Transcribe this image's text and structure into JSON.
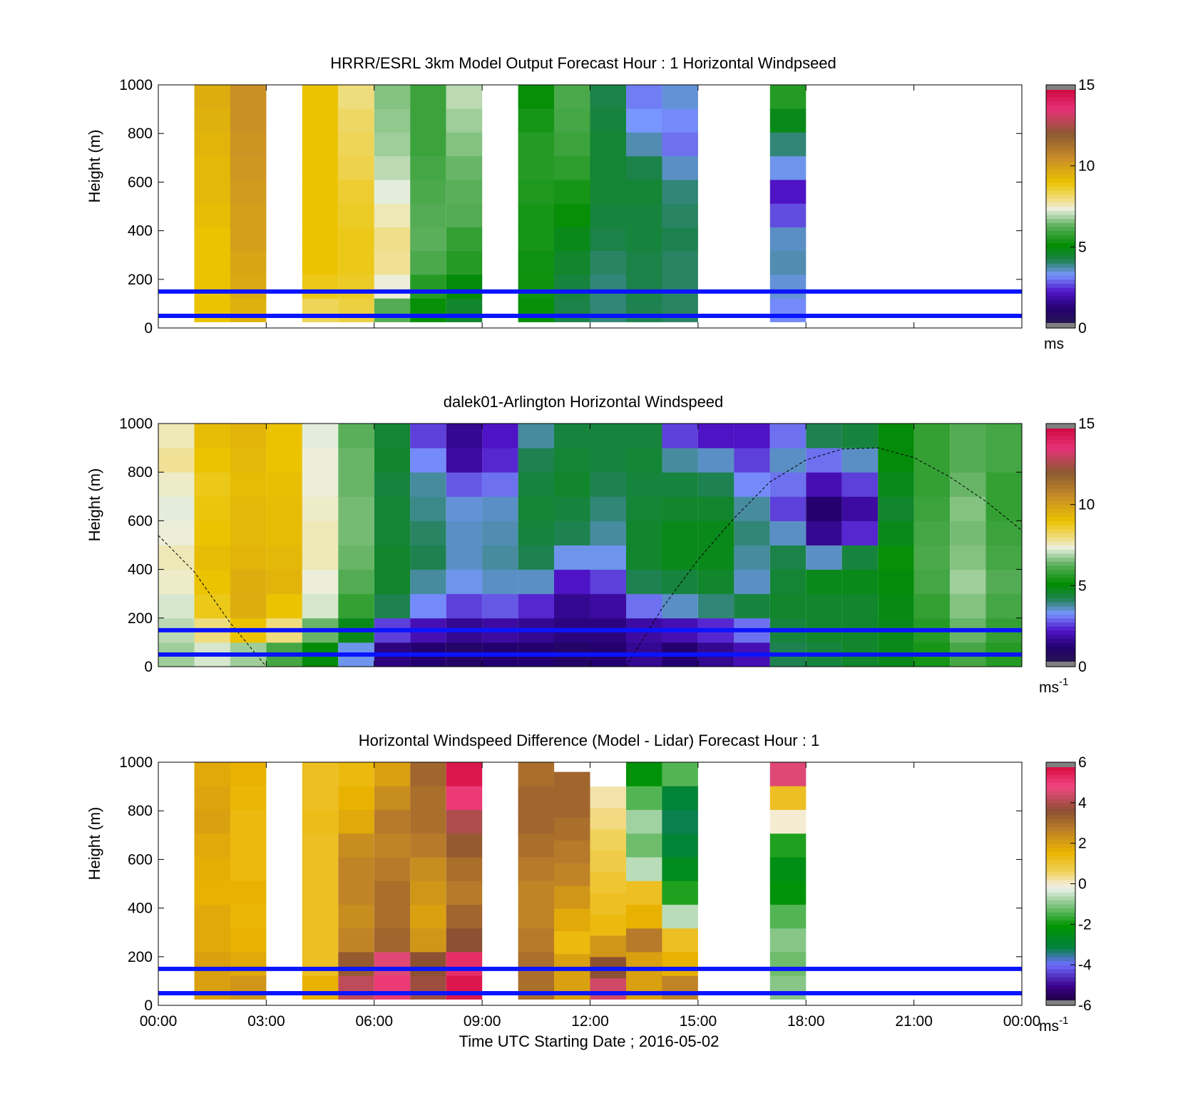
{
  "chart_data": [
    {
      "type": "heatmap",
      "title": "HRRR/ESRL 3km Model Output   Forecast Hour : 1 Horizontal Windpseed",
      "ylabel": "Height (m)",
      "ylim": [
        0,
        1000
      ],
      "yticks": [
        "1000",
        "800",
        "600",
        "400",
        "200",
        "0"
      ],
      "xlim_hours": [
        0,
        24
      ],
      "colorbar": {
        "ticks": [
          "15",
          "10",
          "5",
          "0"
        ],
        "range": [
          0,
          15
        ],
        "unit": "ms",
        "unit_sup": ""
      },
      "reference_heights": [
        50,
        150
      ],
      "columns": [
        {
          "t": 1,
          "values": [
            9,
            9,
            9,
            9,
            9.2,
            9.3,
            9.3,
            9.4,
            9.5,
            9.6
          ]
        },
        {
          "t": 2,
          "values": [
            9.5,
            9.7,
            9.8,
            10,
            10,
            10.1,
            10.2,
            10.3,
            10.4,
            10.4
          ]
        },
        {
          "t": 4,
          "values": [
            8.3,
            8.8,
            9,
            9,
            9,
            9,
            9,
            9,
            9,
            9
          ]
        },
        {
          "t": 5,
          "values": [
            8.5,
            8.7,
            8.8,
            8.8,
            8.7,
            8.6,
            8.4,
            8.3,
            8.2,
            8.0
          ]
        },
        {
          "t": 6,
          "values": [
            6.2,
            7.4,
            7.8,
            7.9,
            7.6,
            7.3,
            7.0,
            6.8,
            6.7,
            6.6
          ]
        },
        {
          "t": 7,
          "values": [
            5.2,
            5.6,
            6.1,
            6.3,
            6.2,
            6.1,
            6.0,
            5.9,
            5.9,
            5.9
          ]
        },
        {
          "t": 8,
          "values": [
            4.6,
            5.0,
            5.6,
            5.8,
            6.2,
            6.3,
            6.4,
            6.6,
            6.8,
            7.0
          ]
        },
        {
          "t": 10,
          "values": [
            5.2,
            5.3,
            5.3,
            5.4,
            5.4,
            5.5,
            5.6,
            5.6,
            5.4,
            5.2
          ]
        },
        {
          "t": 11,
          "values": [
            4.3,
            4.4,
            4.6,
            4.8,
            5.2,
            5.4,
            5.7,
            5.9,
            6.0,
            6.1
          ]
        },
        {
          "t": 12,
          "values": [
            4.0,
            4.0,
            4.1,
            4.3,
            4.4,
            4.5,
            4.5,
            4.5,
            4.4,
            4.3
          ]
        },
        {
          "t": 13,
          "values": [
            4.2,
            4.3,
            4.3,
            4.4,
            4.4,
            4.5,
            4.3,
            3.7,
            3.3,
            3.1
          ]
        },
        {
          "t": 14,
          "values": [
            4.1,
            4.1,
            4.1,
            4.2,
            4.1,
            4.0,
            3.6,
            3.0,
            3.2,
            3.5
          ]
        },
        {
          "t": 17,
          "values": [
            3.2,
            3.5,
            3.7,
            3.6,
            2.7,
            2.2,
            3.4,
            4.0,
            4.8,
            5.6
          ]
        }
      ]
    },
    {
      "type": "heatmap",
      "title": "dalek01-Arlington  Horizontal Windspeed",
      "ylabel": "Height (m)",
      "ylim": [
        0,
        1000
      ],
      "yticks": [
        "1000",
        "800",
        "600",
        "400",
        "200",
        "0"
      ],
      "xlim_hours": [
        0,
        24
      ],
      "colorbar": {
        "ticks": [
          "15",
          "10",
          "5",
          "0"
        ],
        "range": [
          0,
          15
        ],
        "unit": "ms",
        "unit_sup": "-1"
      },
      "reference_heights": [
        50,
        150
      ],
      "columns": [
        {
          "t": 0.5,
          "values": [
            6.8,
            7.0,
            7.2,
            7.5,
            7.6,
            7.4,
            7.3,
            7.5,
            7.8,
            7.6
          ]
        },
        {
          "t": 1.5,
          "values": [
            7.2,
            8.0,
            8.8,
            9.0,
            9.2,
            9.0,
            8.9,
            8.8,
            9.0,
            9.2
          ]
        },
        {
          "t": 2.5,
          "values": [
            6.8,
            9.0,
            9.6,
            9.6,
            9.4,
            9.3,
            9.3,
            9.2,
            9.3,
            9.4
          ]
        },
        {
          "t": 3.5,
          "values": [
            6.0,
            8.0,
            9.0,
            9.4,
            9.3,
            9.2,
            9.2,
            9.1,
            9.0,
            9.0
          ]
        },
        {
          "t": 4.5,
          "values": [
            5.0,
            6.4,
            7.2,
            7.4,
            7.6,
            7.6,
            7.5,
            7.4,
            7.4,
            7.3
          ]
        },
        {
          "t": 5.5,
          "values": [
            3.4,
            4.8,
            5.8,
            6.2,
            6.4,
            6.5,
            6.5,
            6.4,
            6.4,
            6.3
          ]
        },
        {
          "t": 6.5,
          "values": [
            1.4,
            2.6,
            4.2,
            4.6,
            4.6,
            4.5,
            4.5,
            4.4,
            4.6,
            4.5
          ]
        },
        {
          "t": 7.5,
          "values": [
            1.2,
            2.0,
            3.2,
            3.8,
            4.2,
            4.1,
            3.9,
            3.8,
            3.2,
            2.6
          ]
        },
        {
          "t": 8.5,
          "values": [
            1.0,
            1.6,
            2.6,
            3.4,
            3.6,
            3.6,
            3.5,
            2.8,
            1.8,
            1.6
          ]
        },
        {
          "t": 9.5,
          "values": [
            1.2,
            1.8,
            2.8,
            3.6,
            3.8,
            3.7,
            3.6,
            3.0,
            2.4,
            2.2
          ]
        },
        {
          "t": 10.5,
          "values": [
            1.2,
            1.6,
            2.4,
            3.6,
            4.2,
            4.4,
            4.5,
            4.4,
            4.2,
            3.8
          ]
        },
        {
          "t": 11.5,
          "values": [
            1.0,
            1.4,
            1.6,
            2.2,
            3.4,
            4.2,
            4.4,
            4.6,
            4.5,
            4.4
          ]
        },
        {
          "t": 12.5,
          "values": [
            1.2,
            1.4,
            1.8,
            2.6,
            3.4,
            3.8,
            4.0,
            4.2,
            4.4,
            4.4
          ]
        },
        {
          "t": 13.5,
          "values": [
            1.6,
            1.8,
            3.0,
            4.2,
            4.6,
            4.6,
            4.5,
            4.4,
            4.5,
            4.4
          ]
        },
        {
          "t": 14.5,
          "values": [
            1.2,
            2.0,
            3.6,
            4.4,
            4.8,
            4.8,
            4.6,
            4.4,
            3.8,
            2.6
          ]
        },
        {
          "t": 15.5,
          "values": [
            1.6,
            2.4,
            4.0,
            4.6,
            4.8,
            4.8,
            4.6,
            4.2,
            3.6,
            2.2
          ]
        },
        {
          "t": 16.5,
          "values": [
            2.0,
            3.0,
            4.4,
            3.6,
            3.8,
            4.0,
            3.8,
            3.2,
            2.6,
            2.2
          ]
        },
        {
          "t": 17.5,
          "values": [
            4.2,
            4.4,
            4.6,
            4.5,
            4.3,
            3.6,
            2.6,
            3.0,
            3.6,
            3.0
          ]
        },
        {
          "t": 18.5,
          "values": [
            4.4,
            4.6,
            4.6,
            4.8,
            3.6,
            1.6,
            1.2,
            2.0,
            3.0,
            4.2
          ]
        },
        {
          "t": 19.5,
          "values": [
            4.6,
            4.6,
            4.6,
            4.8,
            4.4,
            2.4,
            1.8,
            2.6,
            3.6,
            4.4
          ]
        },
        {
          "t": 20.5,
          "values": [
            4.8,
            4.8,
            4.9,
            5.0,
            5.2,
            4.8,
            4.6,
            4.8,
            5.0,
            5.0
          ]
        },
        {
          "t": 21.5,
          "values": [
            5.4,
            5.6,
            5.8,
            6.0,
            6.1,
            6.0,
            5.9,
            5.8,
            5.8,
            5.8
          ]
        },
        {
          "t": 22.5,
          "values": [
            6.0,
            6.4,
            6.6,
            6.8,
            6.6,
            6.5,
            6.6,
            6.4,
            6.2,
            6.2
          ]
        },
        {
          "t": 23.5,
          "values": [
            5.6,
            5.8,
            6.0,
            6.2,
            6.0,
            5.9,
            5.8,
            5.8,
            6.0,
            6.0
          ]
        }
      ],
      "overlay_curve": [
        {
          "t": 0,
          "h": 540
        },
        {
          "t": 1,
          "h": 390
        },
        {
          "t": 2,
          "h": 180
        },
        {
          "t": 3,
          "h": 0
        },
        {
          "t": 13,
          "h": 0
        },
        {
          "t": 14,
          "h": 240
        },
        {
          "t": 15,
          "h": 440
        },
        {
          "t": 16,
          "h": 610
        },
        {
          "t": 17,
          "h": 760
        },
        {
          "t": 18,
          "h": 850
        },
        {
          "t": 19,
          "h": 895
        },
        {
          "t": 20,
          "h": 900
        },
        {
          "t": 21,
          "h": 860
        },
        {
          "t": 22,
          "h": 780
        },
        {
          "t": 23,
          "h": 680
        },
        {
          "t": 24,
          "h": 560
        }
      ]
    },
    {
      "type": "heatmap",
      "title": "Horizontal Windspeed Difference (Model - Lidar) Forecast Hour : 1",
      "ylabel": "Height (m)",
      "xlabel": "Time UTC  Starting Date ; 2016-05-02",
      "ylim": [
        0,
        1000
      ],
      "yticks": [
        "1000",
        "800",
        "600",
        "400",
        "200",
        "0"
      ],
      "xticks": [
        "00:00",
        "03:00",
        "06:00",
        "09:00",
        "12:00",
        "15:00",
        "18:00",
        "21:00",
        "00:00"
      ],
      "xlim_hours": [
        0,
        24
      ],
      "colorbar": {
        "ticks": [
          "6",
          "4",
          "2",
          "0",
          "-2",
          "-4",
          "-6"
        ],
        "range": [
          -6,
          6
        ],
        "unit": "ms",
        "unit_sup": "-1"
      },
      "reference_heights": [
        50,
        150
      ],
      "columns": [
        {
          "t": 1,
          "top": 1000,
          "values": [
            2.0,
            2.0,
            1.8,
            1.8,
            1.6,
            1.7,
            1.8,
            2.0,
            1.9,
            1.8
          ]
        },
        {
          "t": 2,
          "top": 1000,
          "values": [
            2.2,
            1.8,
            1.6,
            1.5,
            1.6,
            1.4,
            1.4,
            1.4,
            1.5,
            1.6
          ]
        },
        {
          "t": 4,
          "top": 1000,
          "values": [
            1.6,
            1.2,
            1.2,
            1.2,
            1.2,
            1.2,
            1.2,
            1.3,
            1.2,
            1.2
          ]
        },
        {
          "t": 5,
          "top": 1000,
          "values": [
            4.2,
            3.4,
            2.6,
            2.4,
            2.6,
            2.6,
            2.4,
            1.8,
            1.6,
            1.4
          ]
        },
        {
          "t": 6,
          "top": 1000,
          "values": [
            5.0,
            4.6,
            3.2,
            3.0,
            3.0,
            2.8,
            2.6,
            2.8,
            2.4,
            2.0
          ]
        },
        {
          "t": 7,
          "top": 1000,
          "values": [
            3.8,
            3.6,
            2.2,
            2.0,
            2.2,
            2.4,
            2.8,
            3.0,
            3.0,
            3.2
          ]
        },
        {
          "t": 8,
          "top": 1000,
          "values": [
            5.6,
            5.2,
            3.6,
            3.2,
            2.8,
            3.0,
            3.4,
            4.0,
            5.0,
            5.6
          ]
        },
        {
          "t": 10,
          "top": 1000,
          "values": [
            3.0,
            3.0,
            2.8,
            2.6,
            2.6,
            2.8,
            3.0,
            3.2,
            3.2,
            3.0
          ]
        },
        {
          "t": 11,
          "top": 960,
          "values": [
            2.0,
            2.0,
            1.4,
            1.8,
            2.2,
            2.6,
            2.8,
            3.0,
            3.2,
            3.2
          ]
        },
        {
          "t": 12,
          "top": 900,
          "values": [
            4.4,
            3.6,
            2.2,
            1.4,
            1.2,
            1.0,
            0.8,
            0.6,
            0.4,
            0.2
          ]
        },
        {
          "t": 13,
          "top": 1000,
          "values": [
            2.0,
            2.0,
            2.8,
            1.6,
            1.2,
            -0.6,
            -1.2,
            -0.8,
            -1.4,
            -2.2
          ]
        },
        {
          "t": 14,
          "top": 1000,
          "values": [
            2.6,
            1.6,
            1.2,
            -0.6,
            -1.8,
            -2.6,
            -3.0,
            -3.2,
            -3.0,
            -1.4
          ]
        },
        {
          "t": 17,
          "top": 1000,
          "values": [
            -1.0,
            -1.2,
            -1.0,
            -1.4,
            -2.2,
            -2.4,
            -1.8,
            0.0,
            1.2,
            4.6
          ]
        }
      ]
    }
  ]
}
